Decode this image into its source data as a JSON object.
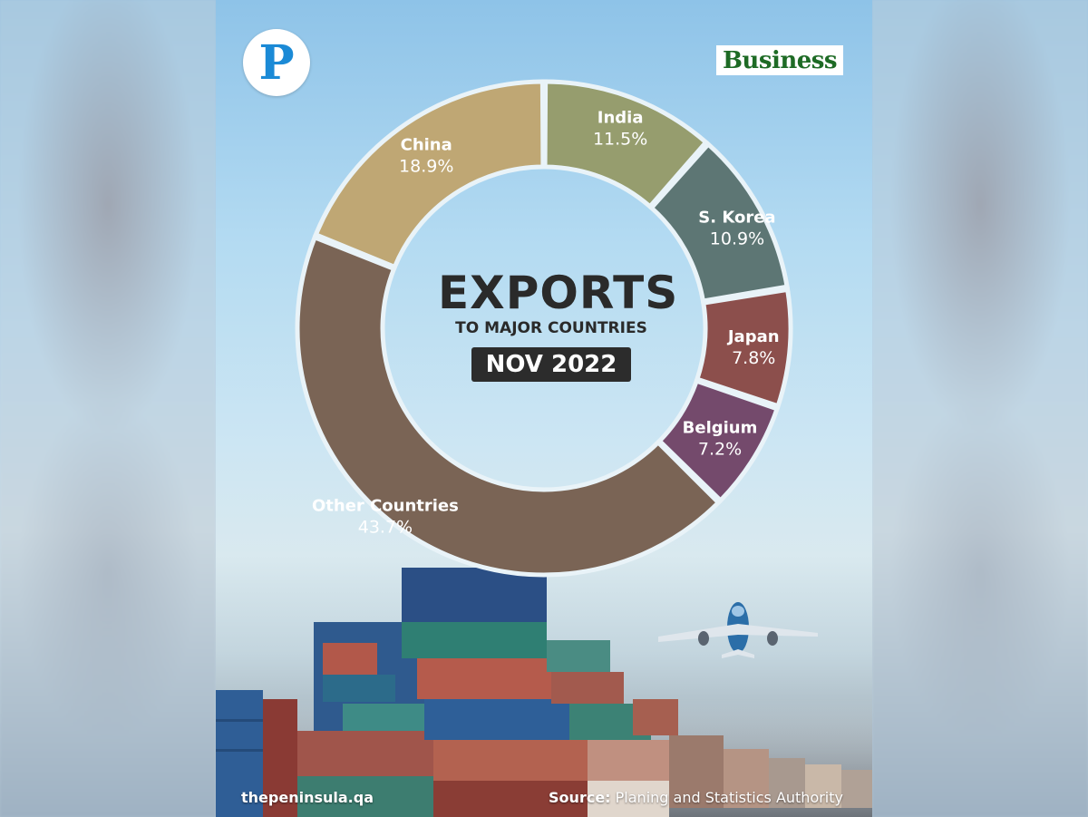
{
  "header": {
    "logo_letter": "P",
    "section": "Business"
  },
  "center": {
    "title": "EXPORTS",
    "subtitle": "TO MAJOR COUNTRIES",
    "date": "NOV 2022"
  },
  "chart_data": {
    "type": "pie",
    "title": "EXPORTS",
    "subtitle": "TO MAJOR COUNTRIES",
    "unit": "%",
    "categories": [
      "India",
      "S. Korea",
      "Japan",
      "Belgium",
      "Other Countries",
      "China"
    ],
    "values": [
      11.5,
      10.9,
      7.8,
      7.2,
      43.7,
      18.9
    ],
    "value_labels": [
      "11.5%",
      "10.9%",
      "7.8%",
      "7.2%",
      "43.7%",
      "18.9%"
    ],
    "colors": [
      "#969d6e",
      "#5d7674",
      "#8c4f4c",
      "#744a6c",
      "#7a6455",
      "#bfa774"
    ]
  },
  "footer": {
    "site": "thepeninsula.qa",
    "source_label": "Source:",
    "source_text": "Planing and Statistics Authority"
  }
}
